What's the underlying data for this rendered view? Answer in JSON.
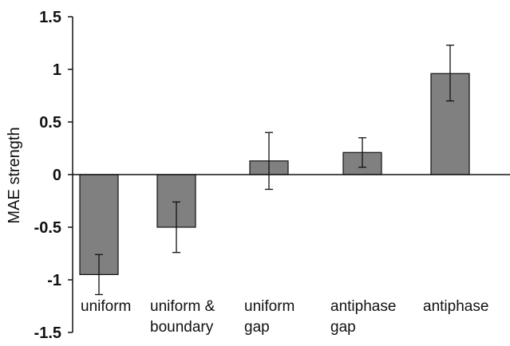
{
  "chart_data": {
    "type": "bar",
    "ylabel": "MAE strength",
    "ylim": [
      -1.5,
      1.5
    ],
    "yticks": [
      1.5,
      1,
      0.5,
      0,
      -0.5,
      -1,
      -1.5
    ],
    "ytick_labels": [
      "1.5",
      "1",
      "0.5",
      "0",
      "-0.5",
      "-1",
      "-1.5"
    ],
    "categories": [
      [
        "uniform"
      ],
      [
        "uniform &",
        "boundary"
      ],
      [
        "uniform",
        "gap"
      ],
      [
        "antiphase",
        "gap"
      ],
      [
        "antiphase"
      ]
    ],
    "values": [
      -0.95,
      -0.5,
      0.13,
      0.21,
      0.96
    ],
    "error_low": [
      -1.14,
      -0.74,
      -0.14,
      0.07,
      0.7
    ],
    "error_high": [
      -0.76,
      -0.26,
      0.4,
      0.35,
      1.23
    ],
    "grid": false,
    "colors": {
      "bar_fill": "#808080",
      "bar_stroke": "#111111",
      "axis": "#111111"
    }
  }
}
